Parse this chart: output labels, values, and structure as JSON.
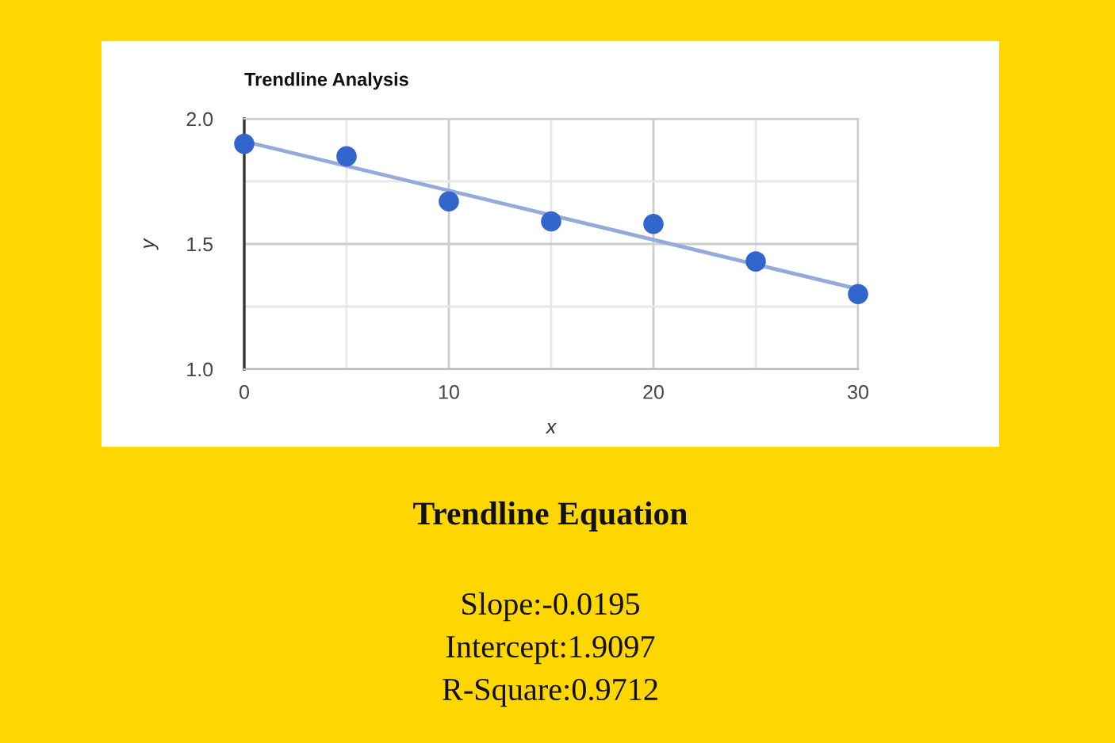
{
  "chart_data": {
    "type": "scatter",
    "title": "Trendline Analysis",
    "xlabel": "x",
    "ylabel": "y",
    "x": [
      0,
      5,
      10,
      15,
      20,
      25,
      30
    ],
    "series": [
      {
        "color": "#3366cc",
        "values": [
          1.9,
          1.85,
          1.67,
          1.59,
          1.58,
          1.43,
          1.3
        ]
      },
      {
        "type": "line",
        "x": [
          0,
          30
        ],
        "values": [
          1.91,
          1.32
        ],
        "color": "#94abd9",
        "marker": "none",
        "line_style": "solid"
      }
    ],
    "xlim": [
      0,
      30
    ],
    "xticks": [
      0,
      {
        "value": 5,
        "label": null
      },
      10,
      {
        "value": 15,
        "label": null
      },
      20,
      {
        "value": 25,
        "label": null
      },
      30
    ],
    "ylim": [
      1,
      2
    ],
    "yticks": [
      {
        "value": 1,
        "label": "1.0"
      },
      {
        "value": 1.25,
        "label": null
      },
      1.5,
      {
        "value": 1.75,
        "label": null
      },
      {
        "value": 2,
        "label": "2.0"
      }
    ],
    "grid": true,
    "marker": "circle",
    "annotations": [
      "Trendline Equation",
      "Slope:-0.0195",
      "Intercept:1.9097",
      "R-Square:0.9712"
    ]
  }
}
